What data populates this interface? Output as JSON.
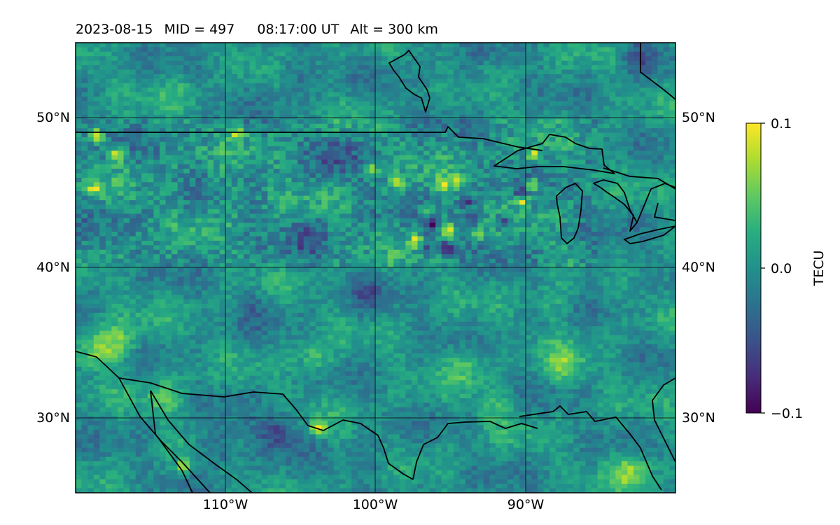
{
  "title": {
    "date": "2023-08-15",
    "mid": "MID = 497",
    "time": "08:17:00  UT",
    "alt": "Alt = 300 km"
  },
  "map": {
    "lon_range": [
      -120,
      -80
    ],
    "lat_range": [
      25,
      55
    ],
    "lon_ticks": [
      {
        "value": -110,
        "label": "110°W"
      },
      {
        "value": -100,
        "label": "100°W"
      },
      {
        "value": -90,
        "label": "90°W"
      }
    ],
    "lat_ticks": [
      {
        "value": 50,
        "label": "50°N"
      },
      {
        "value": 40,
        "label": "40°N"
      },
      {
        "value": 30,
        "label": "30°N"
      }
    ],
    "grid": true,
    "projection": "plate carree",
    "field": "TEC anomaly",
    "colormap": "viridis",
    "background_hex": "#21918c"
  },
  "colorbar": {
    "label": "TECU",
    "min": -0.1,
    "max": 0.1,
    "ticks": [
      {
        "value": 0.1,
        "label": "0.1"
      },
      {
        "value": 0.0,
        "label": "0.0"
      },
      {
        "value": -0.1,
        "label": "−0.1"
      }
    ],
    "position": "right"
  },
  "chart_data": {
    "type": "heatmap",
    "xlabel": "",
    "ylabel": "",
    "x_range": [
      -120,
      -80
    ],
    "y_range": [
      25,
      55
    ],
    "value_range": [
      -0.1,
      0.1
    ],
    "hotspots": [
      {
        "lon": -100.2,
        "lat": 46.5,
        "value": 0.1
      },
      {
        "lon": -95.5,
        "lat": 45.5,
        "value": 0.1
      },
      {
        "lon": -94.5,
        "lat": 45.8,
        "value": 0.09
      },
      {
        "lon": -98.5,
        "lat": 45.7,
        "value": 0.1
      },
      {
        "lon": -96.5,
        "lat": 43.8,
        "value": 0.09
      },
      {
        "lon": -97.3,
        "lat": 41.8,
        "value": 0.1
      },
      {
        "lon": -95.2,
        "lat": 42.5,
        "value": 0.1
      },
      {
        "lon": -93.2,
        "lat": 42.2,
        "value": 0.08
      },
      {
        "lon": -89.5,
        "lat": 47.5,
        "value": 0.1
      },
      {
        "lon": -89.5,
        "lat": 45.5,
        "value": 0.09
      },
      {
        "lon": -90.2,
        "lat": 44.5,
        "value": 0.08
      },
      {
        "lon": -118.6,
        "lat": 48.8,
        "value": 0.1
      },
      {
        "lon": -117.2,
        "lat": 47.5,
        "value": 0.09
      },
      {
        "lon": -109.1,
        "lat": 49.0,
        "value": 0.09
      },
      {
        "lon": -103.8,
        "lat": 29.3,
        "value": 0.1
      },
      {
        "lon": -112.8,
        "lat": 26.7,
        "value": 0.08
      },
      {
        "lon": -118.8,
        "lat": 45.2,
        "value": 0.08
      },
      {
        "lon": -95.2,
        "lat": 41.3,
        "value": -0.1
      },
      {
        "lon": -96.3,
        "lat": 42.8,
        "value": -0.09
      },
      {
        "lon": -94.0,
        "lat": 44.5,
        "value": -0.08
      },
      {
        "lon": -90.3,
        "lat": 45.0,
        "value": -0.08
      },
      {
        "lon": -91.6,
        "lat": 43.1,
        "value": -0.08
      },
      {
        "lon": -96.7,
        "lat": 41.4,
        "value": -0.07
      },
      {
        "lon": -93.5,
        "lat": 43.3,
        "value": -0.07
      },
      {
        "lon": -106.5,
        "lat": 29.0,
        "value": -0.06
      },
      {
        "lon": -110.5,
        "lat": 28.0,
        "value": -0.05
      },
      {
        "lon": -82.5,
        "lat": 54.0,
        "value": -0.05
      },
      {
        "lon": -100.5,
        "lat": 38.0,
        "value": -0.03
      },
      {
        "lon": -110.0,
        "lat": 45.0,
        "value": 0.02
      },
      {
        "lon": -104.0,
        "lat": 34.0,
        "value": 0.04
      },
      {
        "lon": -94.0,
        "lat": 33.5,
        "value": 0.04
      },
      {
        "lon": -87.5,
        "lat": 33.5,
        "value": 0.05
      },
      {
        "lon": -117.0,
        "lat": 35.0,
        "value": 0.05
      },
      {
        "lon": -118.5,
        "lat": 34.5,
        "value": 0.06
      },
      {
        "lon": -92.0,
        "lat": 30.5,
        "value": 0.03
      },
      {
        "lon": -114.0,
        "lat": 31.5,
        "value": 0.04
      },
      {
        "lon": -83.0,
        "lat": 26.5,
        "value": 0.06
      },
      {
        "lon": -102.5,
        "lat": 47.5,
        "value": -0.04
      },
      {
        "lon": -104.5,
        "lat": 42.0,
        "value": -0.03
      },
      {
        "lon": -108.0,
        "lat": 37.5,
        "value": -0.02
      },
      {
        "lon": -85.0,
        "lat": 40.0,
        "value": -0.03
      },
      {
        "lon": -88.0,
        "lat": 37.5,
        "value": 0.03
      },
      {
        "lon": -100.0,
        "lat": 27.0,
        "value": -0.02
      },
      {
        "lon": -113.0,
        "lat": 51.5,
        "value": 0.02
      },
      {
        "lon": -105.5,
        "lat": 53.0,
        "value": -0.03
      },
      {
        "lon": -94.5,
        "lat": 52.5,
        "value": -0.02
      }
    ]
  }
}
